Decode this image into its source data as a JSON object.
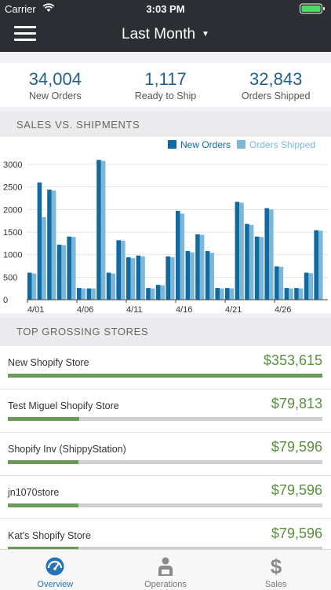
{
  "status_bar": {
    "carrier": "Carrier",
    "time": "3:03 PM"
  },
  "nav": {
    "title": "Last Month",
    "caret": "▼"
  },
  "summary": [
    {
      "value": "34,004",
      "label": "New Orders"
    },
    {
      "value": "1,117",
      "label": "Ready to Ship"
    },
    {
      "value": "32,843",
      "label": "Orders Shipped"
    }
  ],
  "sales_section": {
    "title": "SALES VS. SHIPMENTS"
  },
  "chart_data": {
    "type": "bar",
    "categories": [
      "4/01",
      "4/02",
      "4/03",
      "4/04",
      "4/05",
      "4/06",
      "4/07",
      "4/08",
      "4/09",
      "4/10",
      "4/11",
      "4/12",
      "4/13",
      "4/14",
      "4/15",
      "4/16",
      "4/17",
      "4/18",
      "4/19",
      "4/20",
      "4/21",
      "4/22",
      "4/23",
      "4/24",
      "4/25",
      "4/26",
      "4/27",
      "4/28",
      "4/29",
      "4/30"
    ],
    "tick_labels": [
      {
        "index": 0,
        "label": "4/01"
      },
      {
        "index": 5,
        "label": "4/06"
      },
      {
        "index": 10,
        "label": "4/11"
      },
      {
        "index": 15,
        "label": "4/16"
      },
      {
        "index": 20,
        "label": "4/21"
      },
      {
        "index": 25,
        "label": "4/26"
      }
    ],
    "series": [
      {
        "name": "New Orders",
        "color": "#0f6aa3",
        "values": [
          600,
          2600,
          2440,
          1220,
          1400,
          260,
          250,
          3100,
          600,
          1320,
          940,
          980,
          260,
          330,
          960,
          1970,
          1080,
          1450,
          1080,
          260,
          260,
          2170,
          1680,
          1400,
          2030,
          740,
          260,
          260,
          600,
          1540
        ]
      },
      {
        "name": "Orders Shipped",
        "color": "#7db7d8",
        "values": [
          580,
          1830,
          2420,
          1210,
          1390,
          250,
          250,
          3080,
          580,
          1310,
          920,
          960,
          250,
          320,
          940,
          1910,
          1050,
          1440,
          1040,
          250,
          250,
          2150,
          1660,
          1390,
          2000,
          730,
          250,
          250,
          590,
          1530
        ]
      }
    ],
    "yticks": [
      0,
      500,
      1000,
      1500,
      2000,
      2500,
      3000
    ],
    "ylim": [
      0,
      3200
    ],
    "legend": "top-right",
    "grid": true
  },
  "stores_section": {
    "title": "TOP GROSSING STORES"
  },
  "stores": [
    {
      "name": "New Shopify Store",
      "amount": "$353,615",
      "share": 1.0
    },
    {
      "name": "Test Miguel Shopify Store",
      "amount": "$79,813",
      "share": 0.226
    },
    {
      "name": "Shopify Inv (ShippyStation)",
      "amount": "$79,596",
      "share": 0.225
    },
    {
      "name": "jn1070store",
      "amount": "$79,596",
      "share": 0.225
    },
    {
      "name": "Kat's Shopify Store",
      "amount": "$79,596",
      "share": 0.225
    }
  ],
  "tabs": [
    {
      "label": "Overview",
      "icon": "gauge-icon",
      "active": true
    },
    {
      "label": "Operations",
      "icon": "worker-icon",
      "active": false
    },
    {
      "label": "Sales",
      "icon": "dollar-icon",
      "active": false
    }
  ]
}
